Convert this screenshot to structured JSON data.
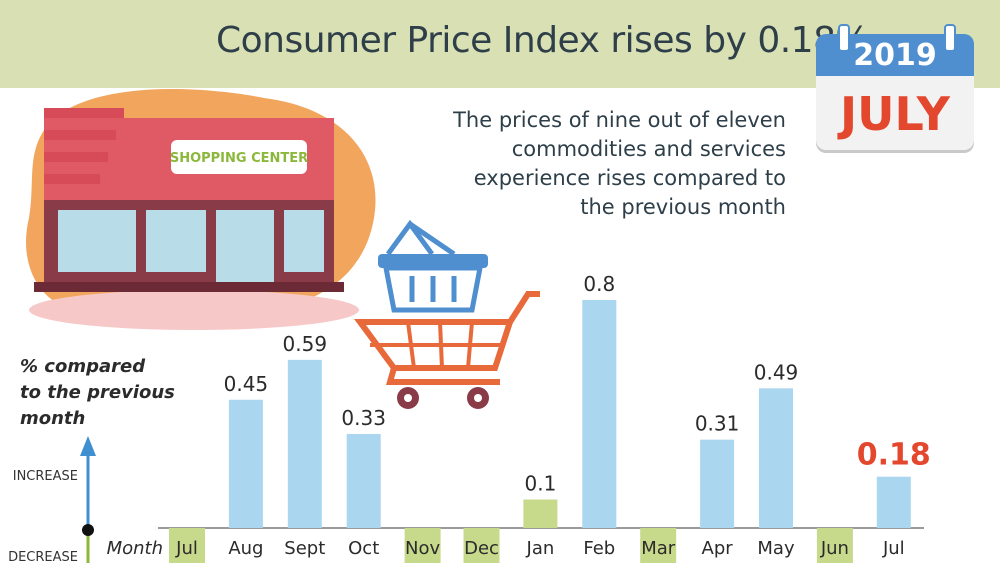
{
  "header": {
    "title": "Consumer Price Index rises by 0.18%"
  },
  "calendar": {
    "year": "2019",
    "month": "JULY"
  },
  "description": {
    "lines": [
      "The prices of nine out of eleven",
      "commodities and services",
      "experience rises compared to",
      "the previous month"
    ]
  },
  "store_sign": "SHOPPING CENTER",
  "colors": {
    "banner": "#d9e0b3",
    "bar": "#abd6ef",
    "bar_small": "#c7d98b",
    "highlight": "#e3472d",
    "calendar_blue": "#4f8fcf",
    "arrow": "#3f8fd1"
  },
  "axis": {
    "ylabel_lines": [
      "% compared",
      "to the previous",
      "month"
    ],
    "increase": "INCREASE",
    "decrease": "DECREASE",
    "month_label": "Month"
  },
  "chart_data": {
    "type": "bar",
    "categories": [
      "Jul",
      "Aug",
      "Sept",
      "Oct",
      "Nov",
      "Dec",
      "Jan",
      "Feb",
      "Mar",
      "Apr",
      "May",
      "Jun",
      "Jul"
    ],
    "values": [
      null,
      0.45,
      0.59,
      0.33,
      null,
      null,
      0.1,
      0.8,
      null,
      0.31,
      0.49,
      null,
      0.18
    ],
    "value_labels": [
      "",
      "0.45",
      "0.59",
      "0.33",
      "",
      "",
      "0.1",
      "0.8",
      "",
      "0.31",
      "0.49",
      "",
      "0.18"
    ],
    "highlighted_categories": [
      0,
      4,
      5,
      8,
      11
    ],
    "highlight_index": 12,
    "ylim": [
      0,
      0.8
    ],
    "xlabel": "Month"
  }
}
